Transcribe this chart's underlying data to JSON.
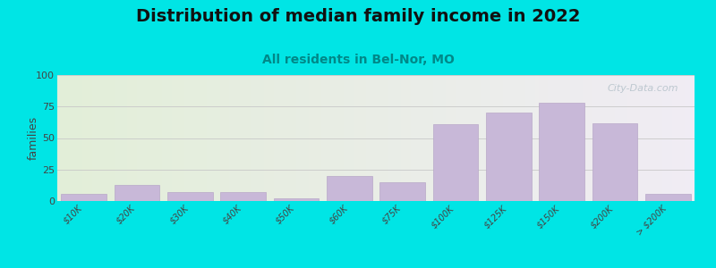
{
  "title": "Distribution of median family income in 2022",
  "subtitle": "All residents in Bel-Nor, MO",
  "ylabel": "families",
  "categories": [
    "$10K",
    "$20K",
    "$30K",
    "$40K",
    "$50K",
    "$60K",
    "$75K",
    "$100K",
    "$125K",
    "$150K",
    "$200K",
    "> $200K"
  ],
  "values": [
    6,
    13,
    7,
    7,
    2,
    20,
    15,
    61,
    70,
    78,
    62,
    6
  ],
  "bar_color": "#c8b8d8",
  "bar_edge_color": "#b8a8c8",
  "ylim": [
    0,
    100
  ],
  "yticks": [
    0,
    25,
    50,
    75,
    100
  ],
  "background_outer": "#00e5e5",
  "bg_left_color": "#e2eed8",
  "bg_right_color": "#f0ecf4",
  "title_fontsize": 14,
  "subtitle_fontsize": 10,
  "subtitle_color": "#008888",
  "ylabel_fontsize": 9,
  "tick_fontsize": 7,
  "watermark_text": "City-Data.com",
  "watermark_color": "#b8c4cc"
}
